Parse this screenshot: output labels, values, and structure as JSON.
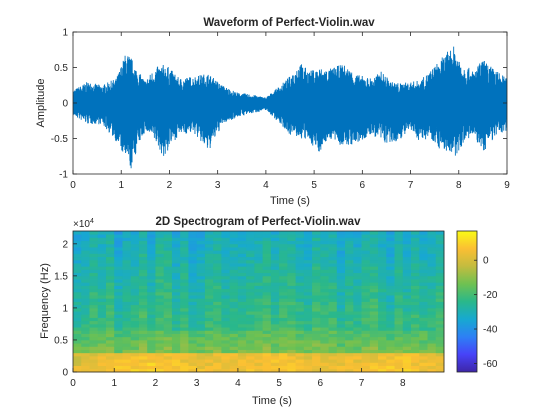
{
  "chart_data": [
    {
      "type": "line",
      "title": "Waveform of Perfect-Violin.wav",
      "xlabel": "Time (s)",
      "ylabel": "Amplitude",
      "xlim": [
        0,
        9
      ],
      "ylim": [
        -1,
        1
      ],
      "xticks": [
        0,
        1,
        2,
        3,
        4,
        5,
        6,
        7,
        8,
        9
      ],
      "yticks": [
        -1,
        -0.5,
        0,
        0.5,
        1
      ],
      "line_color": "#0072BD",
      "grid": false,
      "series": [
        {
          "x": [
            0,
            0.3,
            0.6,
            0.9,
            1.1,
            1.2,
            1.35,
            1.5,
            1.7,
            1.9,
            2.0,
            2.2,
            2.5,
            2.8,
            3.1,
            3.4,
            3.7,
            4.0,
            4.3,
            4.5,
            4.7,
            4.9,
            5.1,
            5.3,
            5.6,
            5.9,
            6.2,
            6.4,
            6.6,
            6.8,
            7.0,
            7.2,
            7.4,
            7.6,
            7.8,
            7.9,
            8.1,
            8.3,
            8.5,
            8.7,
            9.0
          ],
          "upper": [
            0.18,
            0.3,
            0.25,
            0.35,
            0.72,
            0.65,
            0.45,
            0.32,
            0.5,
            0.55,
            0.5,
            0.35,
            0.38,
            0.42,
            0.25,
            0.15,
            0.12,
            0.08,
            0.25,
            0.38,
            0.58,
            0.45,
            0.5,
            0.48,
            0.55,
            0.4,
            0.35,
            0.45,
            0.3,
            0.28,
            0.3,
            0.32,
            0.45,
            0.6,
            0.75,
            0.8,
            0.55,
            0.45,
            0.62,
            0.5,
            0.35
          ],
          "lower": [
            -0.18,
            -0.3,
            -0.3,
            -0.55,
            -0.82,
            -0.95,
            -0.6,
            -0.4,
            -0.55,
            -0.8,
            -0.62,
            -0.45,
            -0.42,
            -0.7,
            -0.3,
            -0.2,
            -0.15,
            -0.1,
            -0.3,
            -0.45,
            -0.5,
            -0.55,
            -0.7,
            -0.5,
            -0.62,
            -0.58,
            -0.45,
            -0.55,
            -0.6,
            -0.5,
            -0.4,
            -0.55,
            -0.48,
            -0.65,
            -0.7,
            -0.82,
            -0.55,
            -0.48,
            -0.7,
            -0.52,
            -0.38
          ]
        }
      ]
    },
    {
      "type": "heatmap",
      "title": "2D Spectrogram of Perfect-Violin.wav",
      "xlabel": "Time (s)",
      "ylabel": "Frequency (Hz)",
      "xlim": [
        0,
        9
      ],
      "ylim": [
        0,
        2.2
      ],
      "y_exponent": "×10",
      "y_exponent_power": "4",
      "xticks": [
        0,
        1,
        2,
        3,
        4,
        5,
        6,
        7,
        8
      ],
      "yticks": [
        0,
        0.5,
        1,
        1.5,
        2
      ],
      "colorbar": {
        "range": [
          -65,
          17
        ],
        "ticks": [
          0,
          -20,
          -40,
          -60
        ],
        "colormap": [
          "#3e26a8",
          "#4743f8",
          "#2d80f5",
          "#17a9d0",
          "#2ab88a",
          "#6fc151",
          "#c3bc3f",
          "#fbbf33",
          "#f9fb15"
        ]
      },
      "time_bins": 45,
      "freq_bins": 44,
      "energy_profile_seconds": [
        0,
        1,
        2,
        3,
        4,
        5,
        6,
        7,
        8,
        9
      ],
      "low_band_level_db": [
        0,
        5,
        8,
        3,
        4,
        6,
        2,
        4,
        6,
        3
      ]
    }
  ]
}
